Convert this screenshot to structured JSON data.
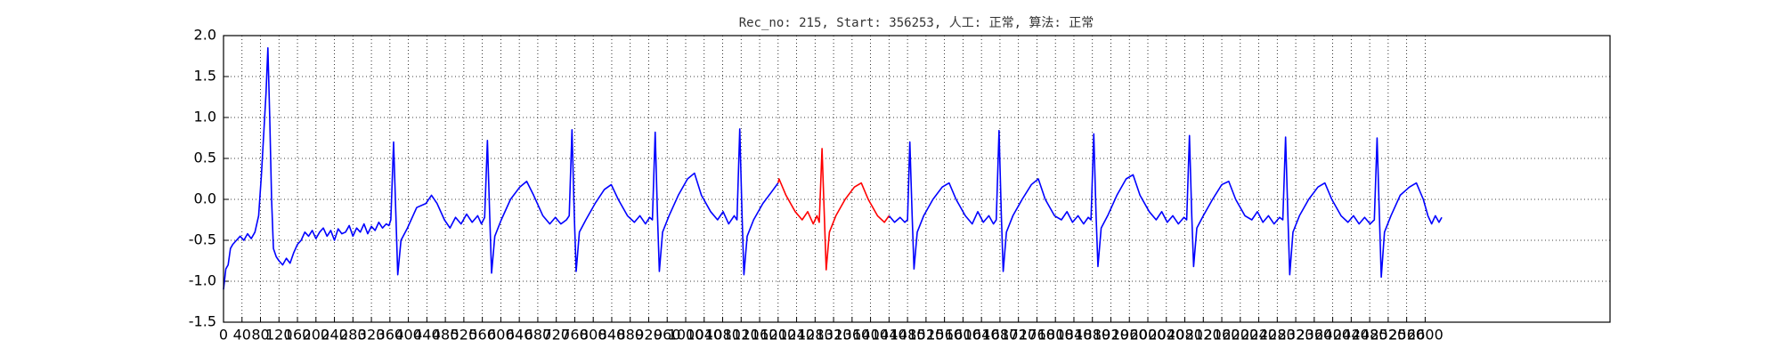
{
  "chart_data": {
    "type": "line",
    "title": "Rec_no: 215, Start: 356253, 人工: 正常, 算法: 正常",
    "xlim": [
      0,
      3000
    ],
    "ylim": [
      -1.5,
      2.0
    ],
    "xticks": [
      0,
      40,
      80,
      120,
      160,
      200,
      240,
      280,
      320,
      360,
      400,
      440,
      480,
      520,
      560,
      600,
      640,
      680,
      720,
      760,
      800,
      840,
      880,
      920,
      960,
      1000,
      1040,
      1080,
      1120,
      1160,
      1200,
      1240,
      1280,
      1320,
      1360,
      1400,
      1440,
      1480,
      1520,
      1560,
      1600,
      1640,
      1680,
      1720,
      1760,
      1800,
      1840,
      1880,
      1920,
      1960,
      2000,
      2040,
      2080,
      2120,
      2160,
      2200,
      2240,
      2280,
      2320,
      2360,
      2400,
      2440,
      2480,
      2520,
      2560,
      2600
    ],
    "yticks": [
      {
        "value": -1.5,
        "label": "-1.5"
      },
      {
        "value": -1,
        "label": "-1.0"
      },
      {
        "value": -0.5,
        "label": "-0.5"
      },
      {
        "value": 0,
        "label": "0.0"
      },
      {
        "value": 0.5,
        "label": "0.5"
      },
      {
        "value": 1,
        "label": "1.0"
      },
      {
        "value": 1.5,
        "label": "1.5"
      },
      {
        "value": 2,
        "label": "2.0"
      }
    ],
    "grid": true,
    "series": [
      {
        "color": "#0000ff",
        "x": [
          0,
          5,
          10,
          15,
          20,
          28,
          36,
          44,
          52,
          60,
          68,
          76,
          82,
          88,
          92,
          96,
          100,
          104,
          108,
          114,
          120,
          128,
          136,
          144,
          152,
          160,
          168,
          176,
          184,
          192,
          200,
          208,
          216,
          224,
          232,
          240,
          248,
          256,
          264,
          272,
          280,
          288,
          296,
          304,
          312,
          320,
          328,
          336,
          344,
          352,
          358,
          362,
          368,
          373,
          377,
          384,
          398,
          418,
          438,
          450,
          462,
          478,
          490,
          502,
          514,
          526,
          538,
          550,
          558,
          565,
          571,
          576,
          580,
          587,
          601,
          621,
          641,
          656,
          671,
          691,
          706,
          718,
          730,
          742,
          748,
          754,
          759,
          763,
          770,
          784,
          804,
          824,
          839,
          854,
          874,
          889,
          901,
          913,
          922,
          928,
          934,
          939,
          943,
          950,
          964,
          984,
          1004,
          1019,
          1034,
          1054,
          1069,
          1081,
          1093,
          1105,
          1111,
          1117,
          1122,
          1126,
          1133,
          1147,
          1167,
          1187,
          1200,
          1320,
          1440,
          1452,
          1464,
          1474,
          1480,
          1485,
          1490,
          1494,
          1501,
          1515,
          1535,
          1555,
          1570,
          1585,
          1605,
          1620,
          1632,
          1644,
          1656,
          1666,
          1672,
          1678,
          1683,
          1687,
          1694,
          1708,
          1728,
          1748,
          1763,
          1778,
          1798,
          1813,
          1825,
          1837,
          1849,
          1861,
          1871,
          1877,
          1883,
          1888,
          1892,
          1899,
          1913,
          1933,
          1953,
          1968,
          1983,
          2003,
          2018,
          2030,
          2042,
          2054,
          2066,
          2078,
          2084,
          2090,
          2095,
          2099,
          2106,
          2120,
          2140,
          2160,
          2175,
          2190,
          2210,
          2225,
          2237,
          2249,
          2261,
          2273,
          2285,
          2292,
          2298,
          2303,
          2307,
          2314,
          2328,
          2348,
          2368,
          2383,
          2398,
          2418,
          2433,
          2445,
          2457,
          2469,
          2481,
          2490,
          2496,
          2501,
          2505,
          2512,
          2526,
          2546,
          2566,
          2581,
          2596,
          2606,
          2614,
          2622,
          2630,
          2636
        ],
        "values": [
          -1.1,
          -0.85,
          -0.8,
          -0.6,
          -0.55,
          -0.5,
          -0.45,
          -0.5,
          -0.42,
          -0.48,
          -0.4,
          -0.2,
          0.3,
          0.9,
          1.3,
          1.85,
          1.0,
          0.0,
          -0.6,
          -0.7,
          -0.75,
          -0.8,
          -0.72,
          -0.78,
          -0.65,
          -0.55,
          -0.5,
          -0.4,
          -0.45,
          -0.38,
          -0.48,
          -0.4,
          -0.35,
          -0.45,
          -0.38,
          -0.5,
          -0.36,
          -0.42,
          -0.4,
          -0.32,
          -0.45,
          -0.35,
          -0.4,
          -0.3,
          -0.42,
          -0.33,
          -0.38,
          -0.28,
          -0.35,
          -0.3,
          -0.32,
          -0.25,
          0.7,
          -0.2,
          -0.92,
          -0.5,
          -0.35,
          -0.1,
          -0.05,
          0.05,
          -0.05,
          -0.25,
          -0.35,
          -0.22,
          -0.3,
          -0.18,
          -0.28,
          -0.2,
          -0.3,
          -0.22,
          0.72,
          -0.2,
          -0.9,
          -0.45,
          -0.25,
          0.0,
          0.15,
          0.22,
          0.05,
          -0.2,
          -0.3,
          -0.22,
          -0.3,
          -0.25,
          -0.2,
          0.85,
          -0.2,
          -0.88,
          -0.4,
          -0.25,
          -0.05,
          0.12,
          0.18,
          0.0,
          -0.2,
          -0.28,
          -0.2,
          -0.3,
          -0.22,
          -0.25,
          0.82,
          -0.2,
          -0.88,
          -0.4,
          -0.2,
          0.05,
          0.25,
          0.32,
          0.05,
          -0.15,
          -0.25,
          -0.15,
          -0.3,
          -0.2,
          -0.25,
          0.86,
          -0.2,
          -0.92,
          -0.45,
          -0.25,
          -0.05,
          0.1,
          0.2,
          null,
          -0.2,
          -0.28,
          -0.22,
          -0.28,
          -0.25,
          0.7,
          -0.2,
          -0.85,
          -0.4,
          -0.2,
          0.0,
          0.15,
          0.2,
          0.0,
          -0.2,
          -0.3,
          -0.15,
          -0.28,
          -0.2,
          -0.3,
          -0.25,
          0.84,
          -0.2,
          -0.88,
          -0.4,
          -0.2,
          0.0,
          0.18,
          0.25,
          0.0,
          -0.2,
          -0.25,
          -0.15,
          -0.28,
          -0.2,
          -0.3,
          -0.22,
          -0.25,
          0.8,
          -0.2,
          -0.82,
          -0.35,
          -0.2,
          0.05,
          0.25,
          0.3,
          0.05,
          -0.15,
          -0.25,
          -0.15,
          -0.28,
          -0.2,
          -0.3,
          -0.22,
          -0.25,
          0.78,
          -0.2,
          -0.82,
          -0.35,
          -0.2,
          0.0,
          0.18,
          0.22,
          0.0,
          -0.2,
          -0.25,
          -0.15,
          -0.28,
          -0.2,
          -0.3,
          -0.22,
          -0.25,
          0.76,
          -0.2,
          -0.92,
          -0.4,
          -0.2,
          0.0,
          0.15,
          0.2,
          0.0,
          -0.2,
          -0.28,
          -0.2,
          -0.3,
          -0.22,
          -0.3,
          -0.25,
          0.75,
          -0.2,
          -0.95,
          -0.4,
          -0.2,
          0.05,
          0.15,
          0.2,
          0.0,
          -0.2,
          -0.3,
          -0.2,
          -0.28,
          -0.22
        ]
      },
      {
        "color": "#ff0000",
        "x": [
          1200,
          1202,
          1217,
          1237,
          1252,
          1264,
          1276,
          1284,
          1289,
          1295,
          1300,
          1304,
          1311,
          1325,
          1345,
          1365,
          1380,
          1395,
          1415,
          1430,
          1440
        ],
        "values": [
          0.2,
          0.25,
          0.05,
          -0.15,
          -0.25,
          -0.15,
          -0.3,
          -0.2,
          -0.28,
          0.62,
          -0.2,
          -0.86,
          -0.4,
          -0.2,
          0.0,
          0.15,
          0.2,
          0.0,
          -0.2,
          -0.28,
          -0.2
        ]
      }
    ]
  }
}
